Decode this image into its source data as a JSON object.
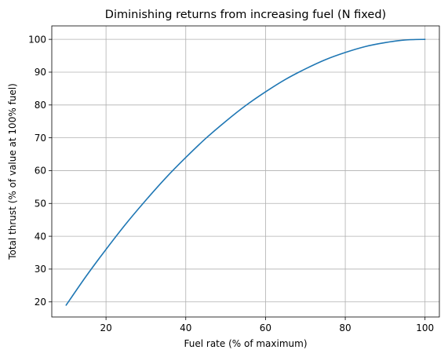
{
  "chart_data": {
    "type": "line",
    "title": "Diminishing returns from increasing fuel (N fixed)",
    "xlabel": "Fuel rate (% of maximum)",
    "ylabel": "Total thrust (% of value at 100% fuel)",
    "xlim": [
      6.4,
      103.6
    ],
    "ylim": [
      15.4,
      104.1
    ],
    "xticks": [
      20,
      40,
      60,
      80,
      100
    ],
    "yticks": [
      20,
      30,
      40,
      50,
      60,
      70,
      80,
      90,
      100
    ],
    "xtick_labels": [
      "20",
      "40",
      "60",
      "80",
      "100"
    ],
    "ytick_labels": [
      "20",
      "30",
      "40",
      "50",
      "60",
      "70",
      "80",
      "90",
      "100"
    ],
    "grid": true,
    "legend": "none",
    "series": [
      {
        "color": "#1f77b4",
        "x": [
          10,
          15,
          20,
          25,
          30,
          35,
          40,
          45,
          50,
          55,
          60,
          65,
          70,
          75,
          80,
          85,
          90,
          95,
          100
        ],
        "y": [
          19.0,
          27.8,
          36.0,
          43.8,
          51.0,
          57.8,
          64.0,
          69.8,
          75.0,
          79.8,
          84.0,
          87.8,
          91.0,
          93.8,
          96.0,
          97.8,
          99.0,
          99.8,
          100.0
        ]
      }
    ]
  }
}
